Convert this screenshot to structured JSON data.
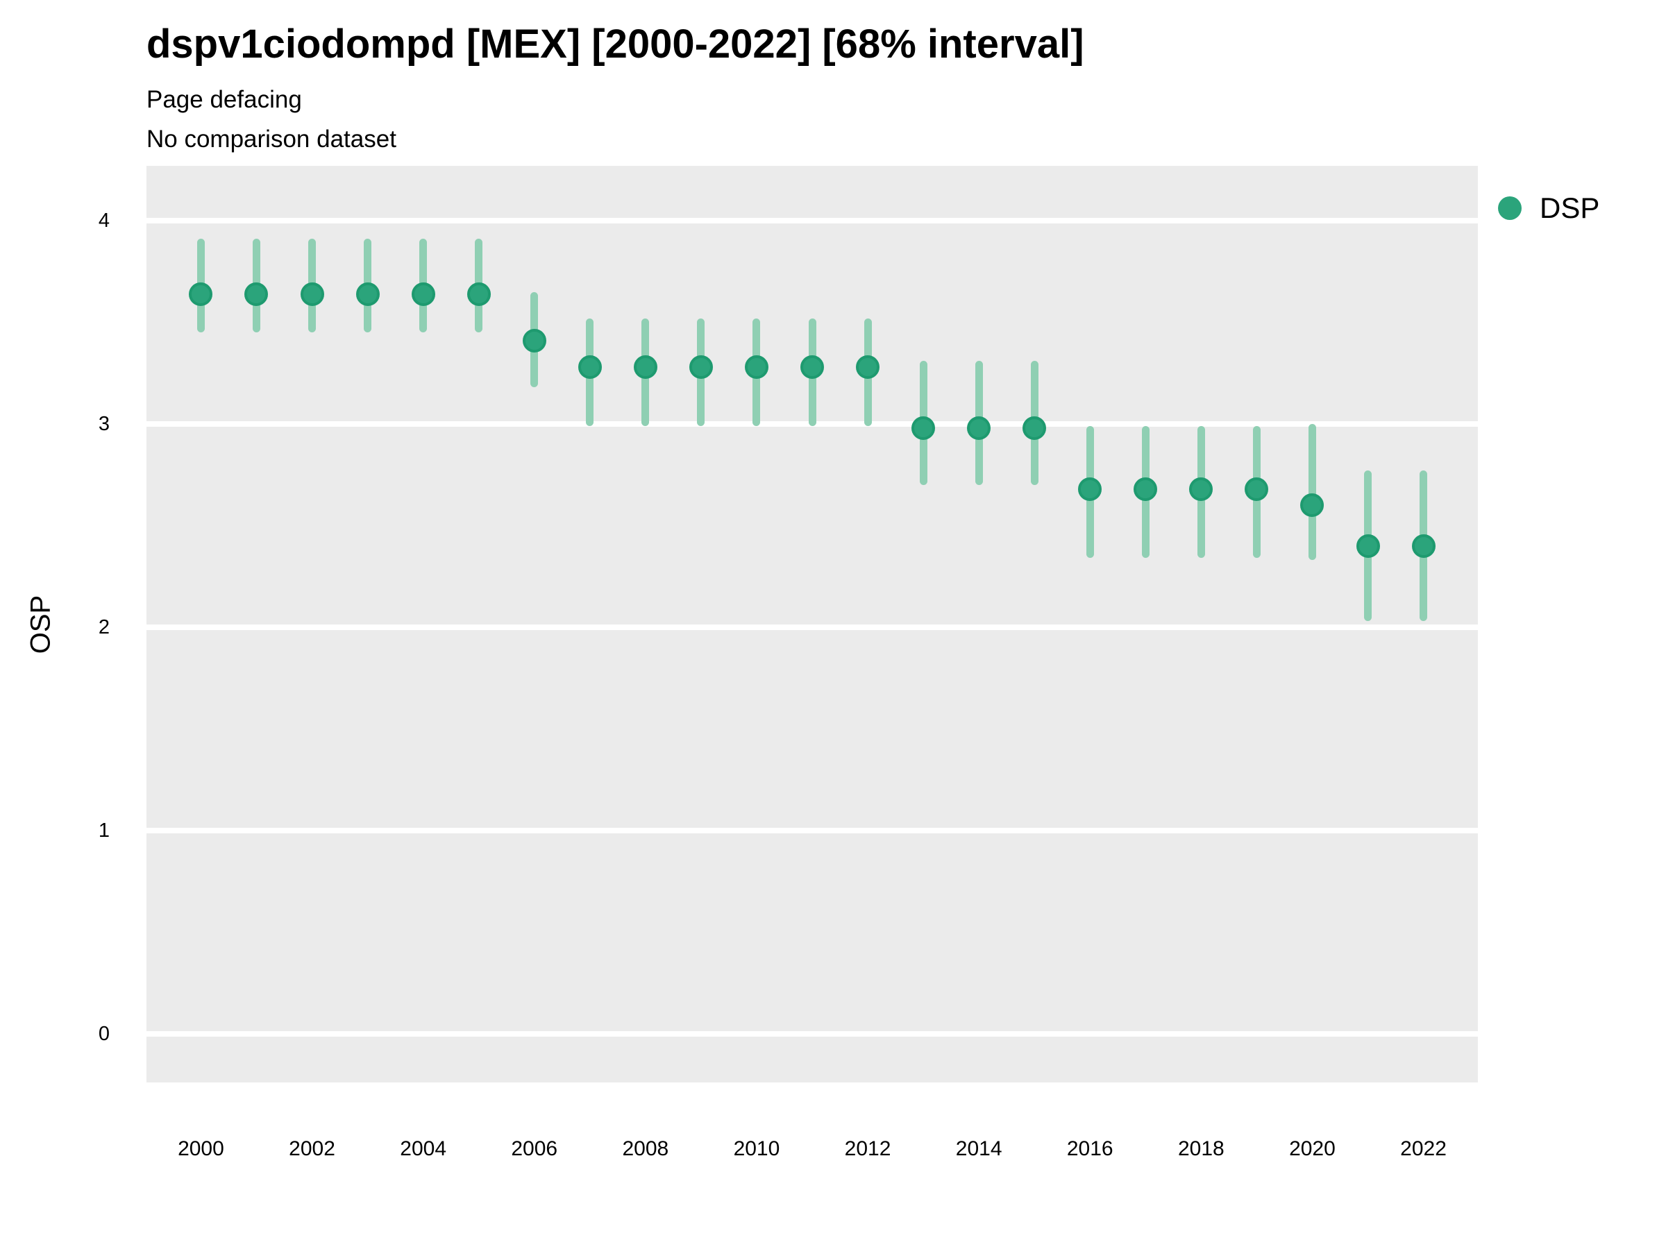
{
  "header": {
    "title": "dspv1ciodompd [MEX] [2000-2022] [68% interval]",
    "subtitle1": "Page defacing",
    "subtitle2": "No comparison dataset"
  },
  "legend": {
    "label": "DSP"
  },
  "colors": {
    "point_fill": "#2BA47B",
    "point_border": "#1E9A6F",
    "interval_bar": "#8FCFB3",
    "panel_background": "#EBEBEB",
    "gridline": "#FFFFFF",
    "text": "#000000"
  },
  "chart_data": {
    "type": "scatter",
    "title": "dspv1ciodompd [MEX] [2000-2022] [68% interval]",
    "subtitle": "Page defacing",
    "subtitle2": "No comparison dataset",
    "xlabel": "",
    "ylabel": "OSP",
    "interval_level": "68%",
    "legend_position": "right",
    "grid": "major horizontal white lines on grey panel",
    "xlim": [
      1999.02,
      2022.98
    ],
    "ylim": [
      -0.24,
      4.27
    ],
    "xticks": [
      2000,
      2002,
      2004,
      2006,
      2008,
      2010,
      2012,
      2014,
      2016,
      2018,
      2020,
      2022
    ],
    "yticks": [
      0,
      1,
      2,
      3,
      4
    ],
    "series_name": "DSP",
    "points": [
      {
        "year": 2000,
        "value": 3.64,
        "low": 3.45,
        "high": 3.91
      },
      {
        "year": 2001,
        "value": 3.64,
        "low": 3.45,
        "high": 3.91
      },
      {
        "year": 2002,
        "value": 3.64,
        "low": 3.45,
        "high": 3.91
      },
      {
        "year": 2003,
        "value": 3.64,
        "low": 3.45,
        "high": 3.91
      },
      {
        "year": 2004,
        "value": 3.64,
        "low": 3.45,
        "high": 3.91
      },
      {
        "year": 2005,
        "value": 3.64,
        "low": 3.45,
        "high": 3.91
      },
      {
        "year": 2006,
        "value": 3.41,
        "low": 3.18,
        "high": 3.65
      },
      {
        "year": 2007,
        "value": 3.28,
        "low": 2.99,
        "high": 3.52
      },
      {
        "year": 2008,
        "value": 3.28,
        "low": 2.99,
        "high": 3.52
      },
      {
        "year": 2009,
        "value": 3.28,
        "low": 2.99,
        "high": 3.52
      },
      {
        "year": 2010,
        "value": 3.28,
        "low": 2.99,
        "high": 3.52
      },
      {
        "year": 2011,
        "value": 3.28,
        "low": 2.99,
        "high": 3.52
      },
      {
        "year": 2012,
        "value": 3.28,
        "low": 2.99,
        "high": 3.52
      },
      {
        "year": 2013,
        "value": 2.98,
        "low": 2.7,
        "high": 3.31
      },
      {
        "year": 2014,
        "value": 2.98,
        "low": 2.7,
        "high": 3.31
      },
      {
        "year": 2015,
        "value": 2.98,
        "low": 2.7,
        "high": 3.31
      },
      {
        "year": 2016,
        "value": 2.68,
        "low": 2.34,
        "high": 2.99
      },
      {
        "year": 2017,
        "value": 2.68,
        "low": 2.34,
        "high": 2.99
      },
      {
        "year": 2018,
        "value": 2.68,
        "low": 2.34,
        "high": 2.99
      },
      {
        "year": 2019,
        "value": 2.68,
        "low": 2.34,
        "high": 2.99
      },
      {
        "year": 2020,
        "value": 2.6,
        "low": 2.33,
        "high": 3.0
      },
      {
        "year": 2021,
        "value": 2.4,
        "low": 2.03,
        "high": 2.77
      },
      {
        "year": 2022,
        "value": 2.4,
        "low": 2.03,
        "high": 2.77
      }
    ]
  }
}
